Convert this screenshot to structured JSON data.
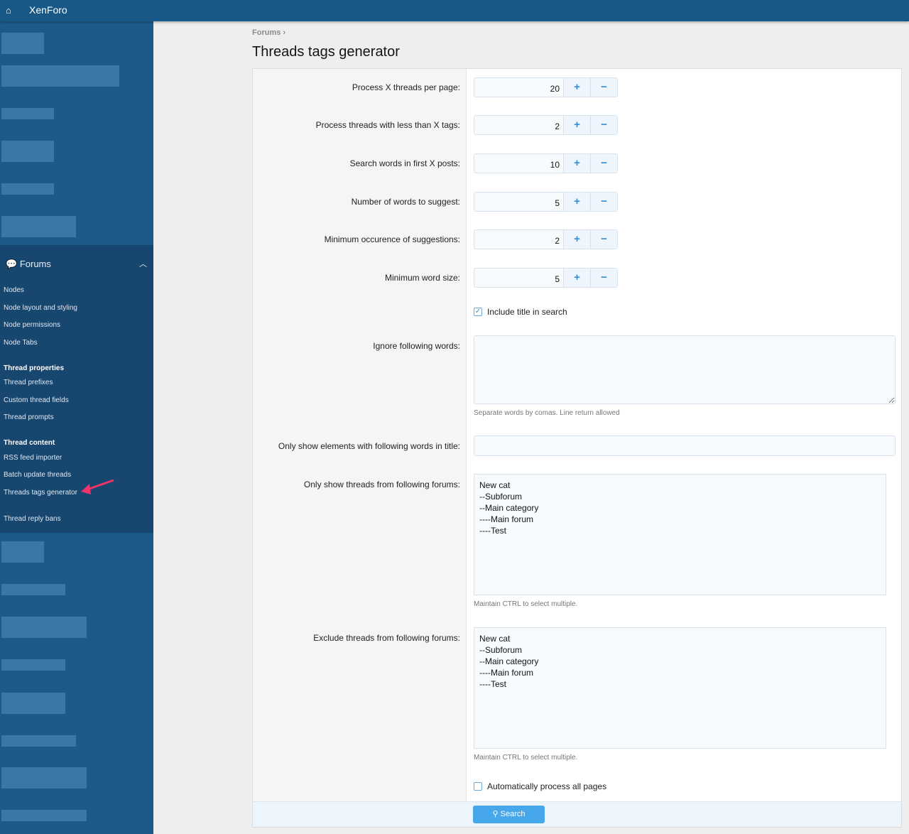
{
  "header": {
    "home_icon": "home-icon",
    "brand": "XenForo"
  },
  "sidebar": {
    "section": {
      "title": "Forums",
      "icon": "comments-icon"
    },
    "items": [
      {
        "label": "Nodes",
        "type": "link"
      },
      {
        "label": "Node layout and styling",
        "type": "link"
      },
      {
        "label": "Node permissions",
        "type": "link"
      },
      {
        "label": "Node Tabs",
        "type": "link"
      },
      {
        "label": "Thread properties",
        "type": "heading"
      },
      {
        "label": "Thread prefixes",
        "type": "link"
      },
      {
        "label": "Custom thread fields",
        "type": "link"
      },
      {
        "label": "Thread prompts",
        "type": "link"
      },
      {
        "label": "Thread content",
        "type": "heading"
      },
      {
        "label": "RSS feed importer",
        "type": "link"
      },
      {
        "label": "Batch update threads",
        "type": "link"
      },
      {
        "label": "Threads tags generator",
        "type": "link",
        "highlighted": true
      },
      {
        "label": "Thread reply bans",
        "type": "link"
      }
    ],
    "annotation_color": "#f0346a"
  },
  "breadcrumb": "Forums",
  "page_title": "Threads tags generator",
  "form": {
    "spinners": [
      {
        "label": "Process X threads per page:",
        "value": "20"
      },
      {
        "label": "Process threads with less than X tags:",
        "value": "2"
      },
      {
        "label": "Search words in first X posts:",
        "value": "10"
      },
      {
        "label": "Number of words to suggest:",
        "value": "5"
      },
      {
        "label": "Minimum occurence of suggestions:",
        "value": "2"
      },
      {
        "label": "Minimum word size:",
        "value": "5"
      }
    ],
    "plus": "+",
    "minus": "−",
    "include_title": {
      "label": "Include title in search",
      "checked": true
    },
    "ignore_words": {
      "label": "Ignore following words:",
      "value": "",
      "hint": "Separate words by comas. Line return allowed"
    },
    "title_filter": {
      "label": "Only show elements with following words in title:",
      "value": ""
    },
    "include_forums": {
      "label": "Only show threads from following forums:",
      "options": [
        "New cat",
        "--Subforum",
        "--Main category",
        "----Main forum",
        "----Test"
      ],
      "hint": "Maintain CTRL to select multiple."
    },
    "exclude_forums": {
      "label": "Exclude threads from following forums:",
      "options": [
        "New cat",
        "--Subforum",
        "--Main category",
        "----Main forum",
        "----Test"
      ],
      "hint": "Maintain CTRL to select multiple."
    },
    "auto_process": {
      "label": "Automatically process all pages",
      "checked": false
    },
    "submit": {
      "label": "Search",
      "icon": "search-icon"
    },
    "accent": "#47a7eb"
  }
}
